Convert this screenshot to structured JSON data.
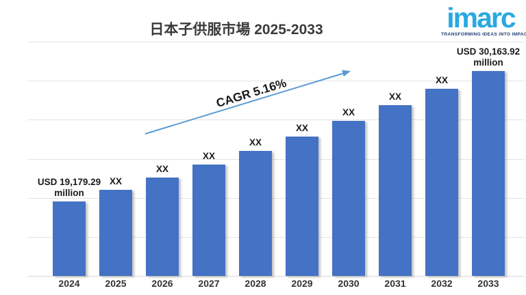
{
  "header": {
    "title": "日本子供服市場 2025-2033",
    "logo": {
      "brand": "imarc",
      "tagline": "TRANSFORMING IDEAS INTO IMPACT",
      "brand_color": "#29a9e1",
      "tagline_color": "#1e3a6e"
    }
  },
  "chart_data": {
    "type": "bar",
    "title": "日本子供服市場 2025-2033",
    "categories": [
      "2024",
      "2025",
      "2026",
      "2027",
      "2028",
      "2029",
      "2030",
      "2031",
      "2032",
      "2033"
    ],
    "values": [
      19179.29,
      20168.94,
      21209.66,
      22304.08,
      23454.97,
      24665.24,
      25937.97,
      27276.37,
      28683.83,
      30163.92
    ],
    "bar_labels": [
      "USD 19,179.29\nmillion",
      "XX",
      "XX",
      "XX",
      "XX",
      "XX",
      "XX",
      "XX",
      "XX",
      "USD 30,163.92\nmillion"
    ],
    "annotation": "CAGR 5.16%",
    "xlabel": "",
    "ylabel": "",
    "unit": "USD million",
    "ylim_estimate": [
      12900,
      30163.92
    ],
    "grid": true,
    "legend": false,
    "bar_color": "#4472c4",
    "arrow_color": "#5b9bd5"
  }
}
